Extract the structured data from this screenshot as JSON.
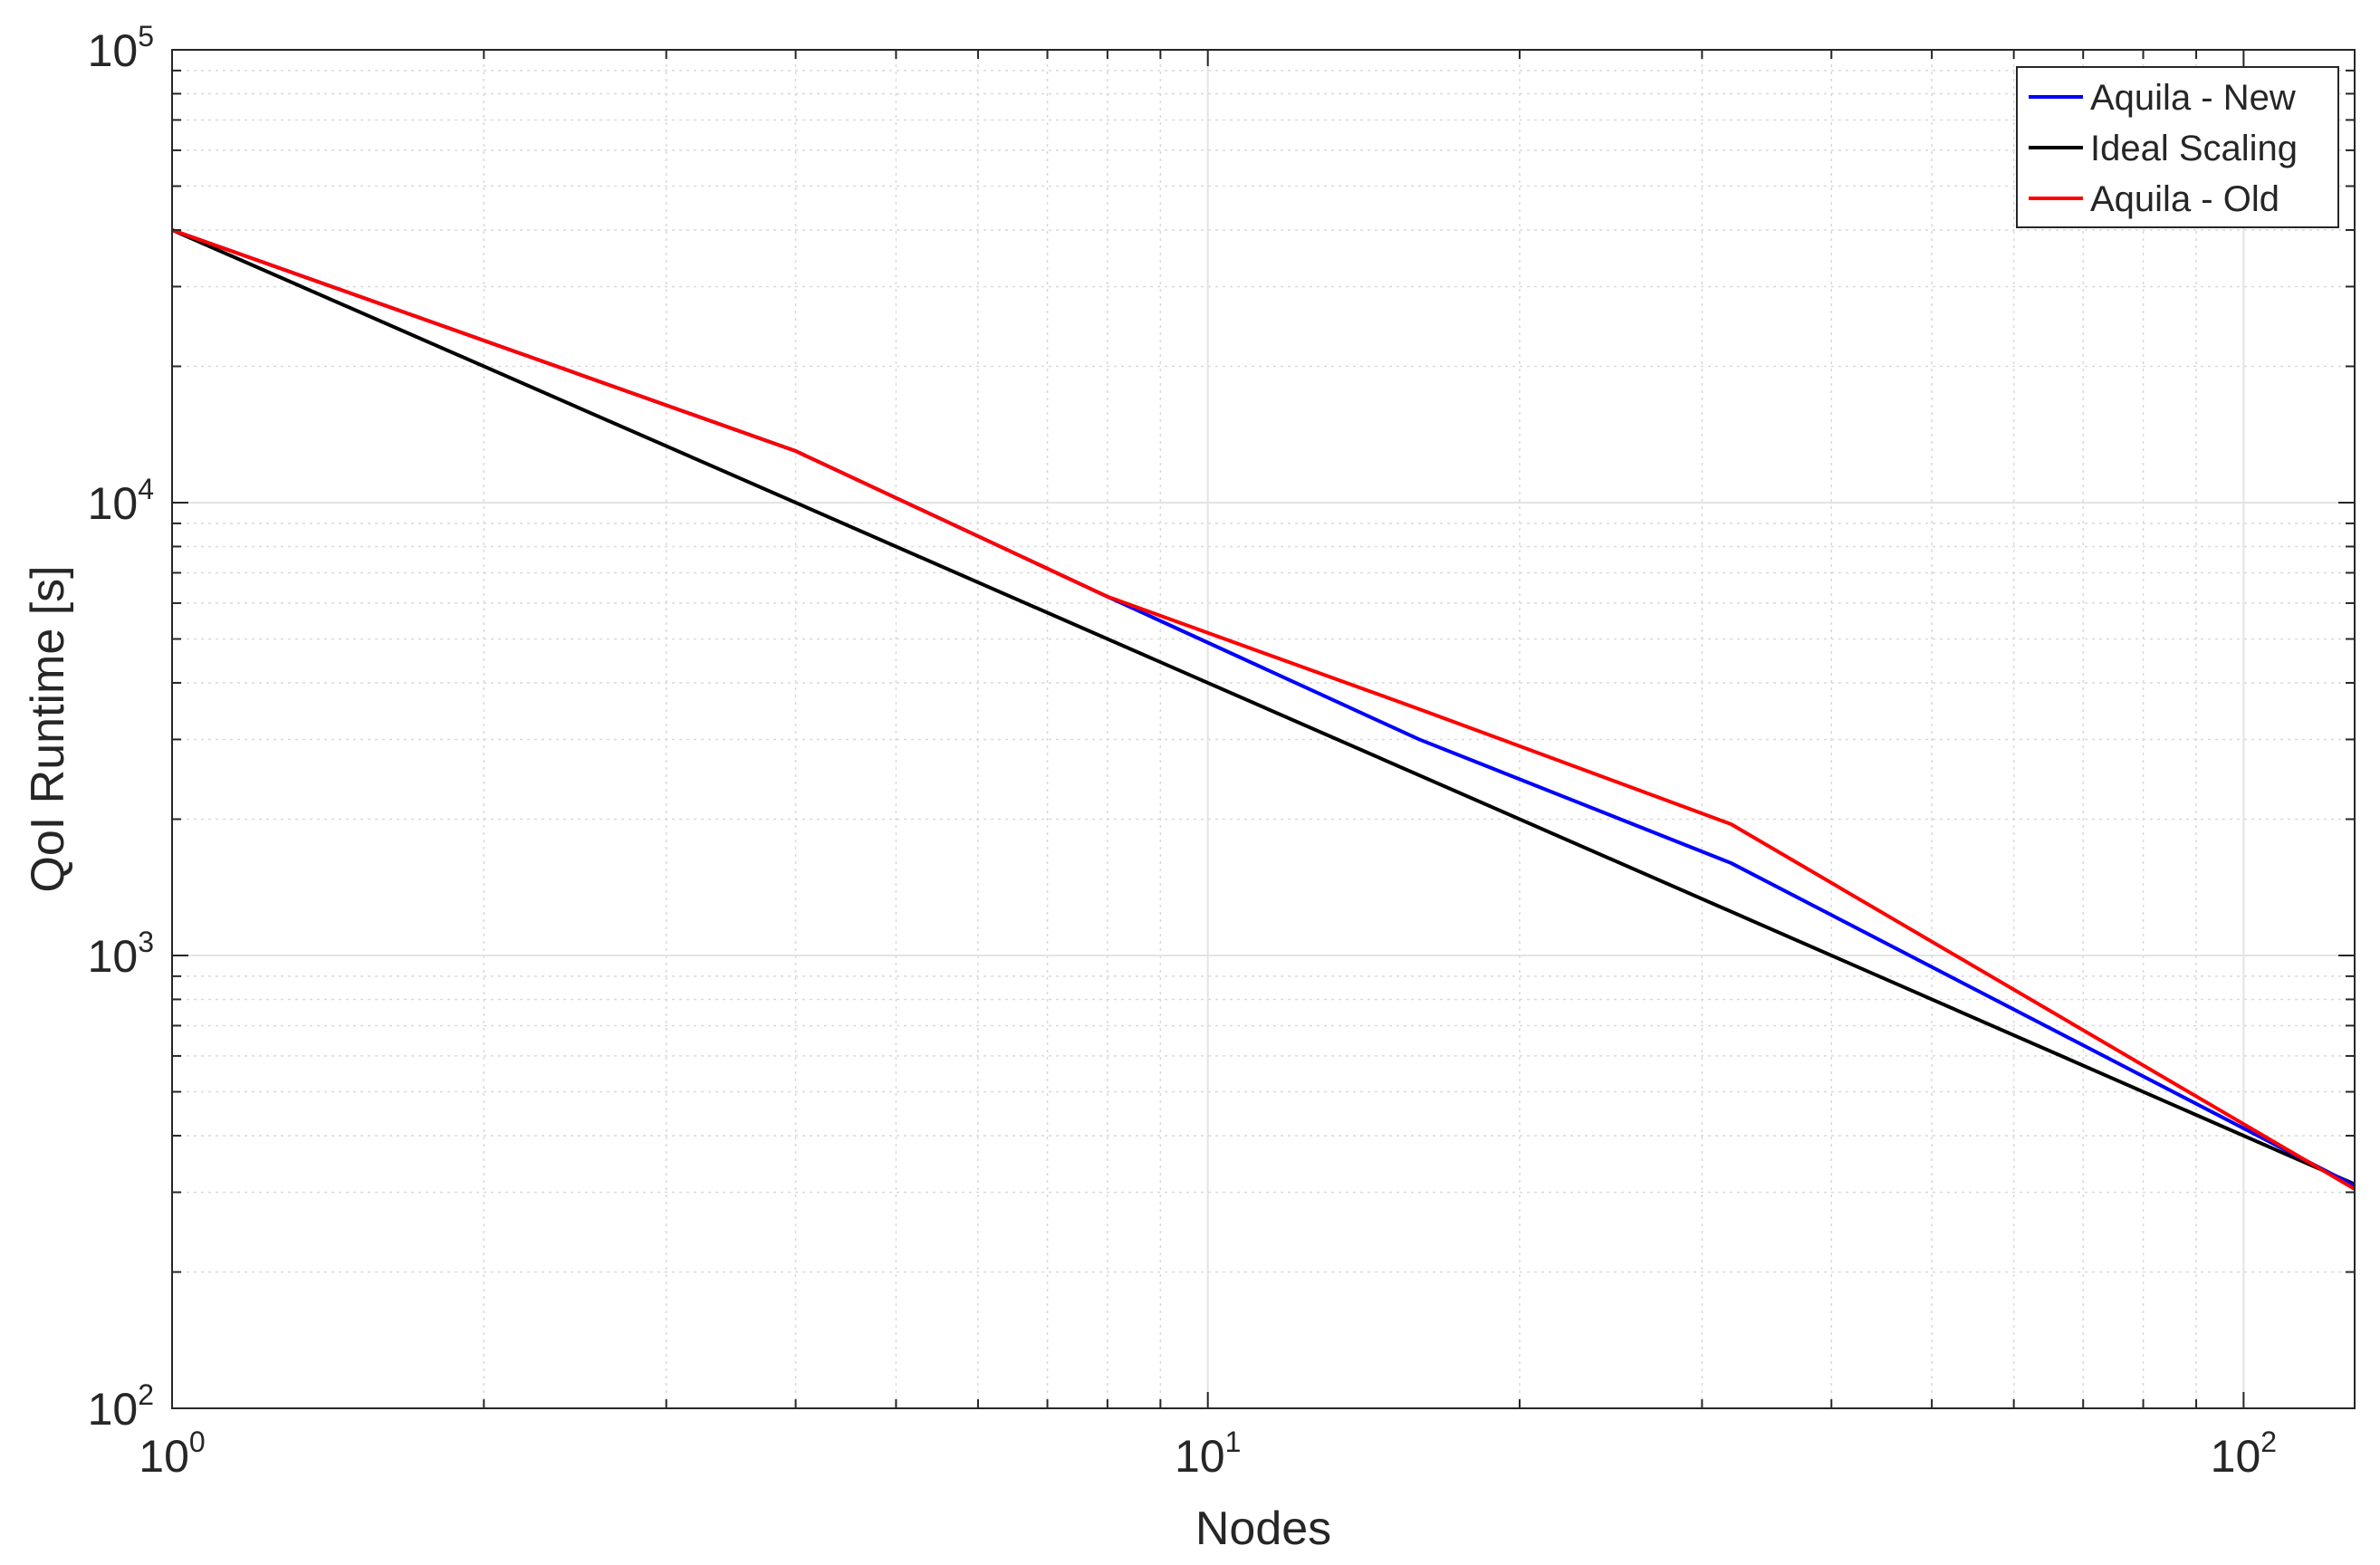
{
  "chart_data": {
    "type": "line",
    "xlabel": "Nodes",
    "ylabel": "QoI Runtime [s]",
    "xscale": "log",
    "yscale": "log",
    "xlim": [
      1,
      128
    ],
    "ylim": [
      100,
      100000
    ],
    "grid": true,
    "minor_grid": true,
    "legend_position": "top-right",
    "x_ticks": [
      {
        "value": 1,
        "base": "10",
        "exp": "0"
      },
      {
        "value": 10,
        "base": "10",
        "exp": "1"
      },
      {
        "value": 100,
        "base": "10",
        "exp": "2"
      }
    ],
    "y_ticks": [
      {
        "value": 100,
        "base": "10",
        "exp": "2"
      },
      {
        "value": 1000,
        "base": "10",
        "exp": "3"
      },
      {
        "value": 10000,
        "base": "10",
        "exp": "4"
      },
      {
        "value": 100000,
        "base": "10",
        "exp": "5"
      }
    ],
    "series": [
      {
        "name": "Aquila - New",
        "color": "#0000ff",
        "x": [
          1,
          4,
          8,
          16,
          32,
          128
        ],
        "y": [
          40000,
          13000,
          6200,
          3000,
          1600,
          310
        ]
      },
      {
        "name": "Ideal Scaling",
        "color": "#000000",
        "x": [
          1,
          128
        ],
        "y": [
          40000,
          312.5
        ]
      },
      {
        "name": "Aquila - Old",
        "color": "#ff0000",
        "x": [
          1,
          4,
          8,
          16,
          32,
          128
        ],
        "y": [
          40000,
          13000,
          6200,
          3500,
          1950,
          305
        ]
      }
    ]
  }
}
